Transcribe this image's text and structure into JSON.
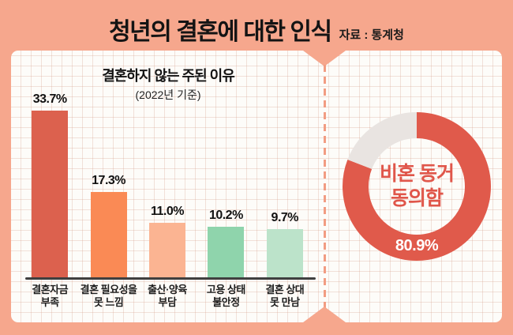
{
  "header": {
    "title": "청년의 결혼에 대한 인식",
    "source": "자료 : 통계청"
  },
  "colors": {
    "frame": "#F6A78D",
    "paper": "#FDFCF9",
    "grid_line": "#E8C4B4",
    "axis_line": "#3F3F3F",
    "text": "#141414",
    "donut_red": "#E05A4B",
    "donut_gray": "#E9E4E1",
    "donut_label_red": "#E0564A",
    "donut_value_text": "#FFFFFF"
  },
  "chart_data": [
    {
      "type": "bar",
      "title": "결혼하지 않는 주된 이유",
      "subtitle": "(2022년 기준)",
      "categories": [
        "결혼자금\n부족",
        "결혼 필요성을\n못 느낌",
        "출산·양육\n부담",
        "고용 상태\n불안정",
        "결혼 상대\n못 만남"
      ],
      "values": [
        33.7,
        17.3,
        11.0,
        10.2,
        9.7
      ],
      "value_labels": [
        "33.7%",
        "17.3%",
        "11.0%",
        "10.2%",
        "9.7%"
      ],
      "bar_colors": [
        "#DC614E",
        "#FA8A55",
        "#FBB492",
        "#8FD4AC",
        "#BCE3CA"
      ],
      "unit": "%",
      "ylim": [
        0,
        36
      ],
      "grid": true,
      "legend": "none"
    },
    {
      "type": "pie",
      "subtype": "donut",
      "center_label": "비혼 동거\n동의함",
      "value_label": "80.9%",
      "slices": [
        {
          "value": 80.9,
          "color": "#E05A4B"
        },
        {
          "value": 19.1,
          "color": "#E9E4E1"
        }
      ],
      "start_angle": "top",
      "direction": "clockwise"
    }
  ]
}
